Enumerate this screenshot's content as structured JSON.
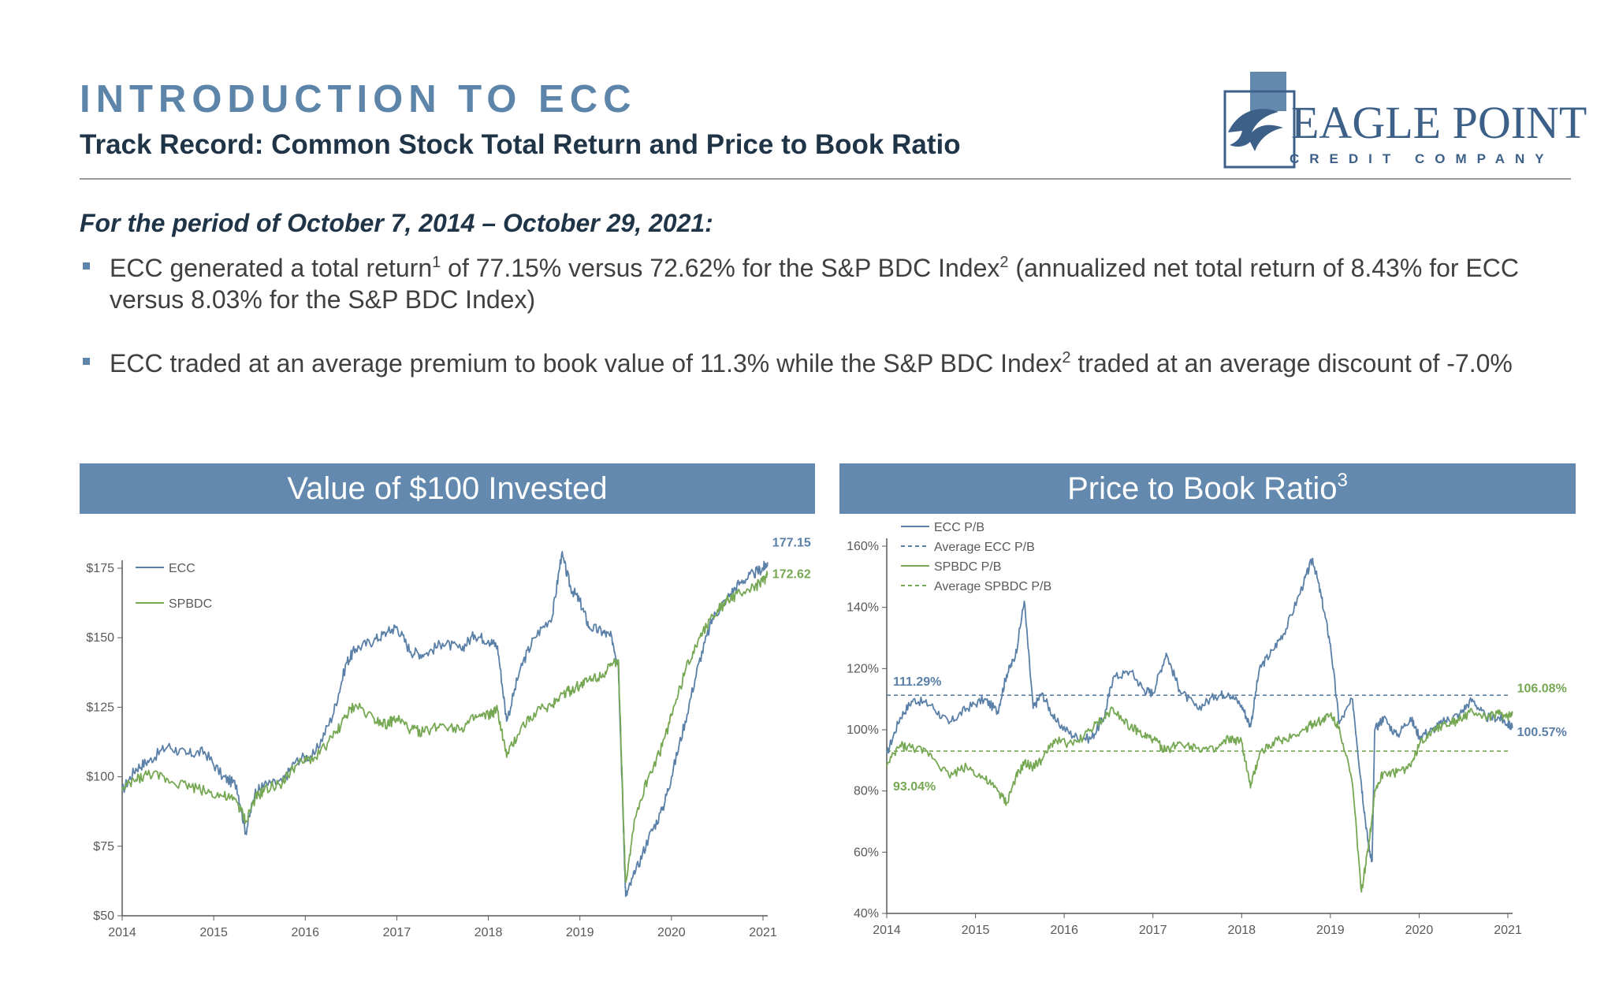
{
  "header": {
    "kicker": "INTRODUCTION TO ECC",
    "title": "Track Record: Common Stock Total Return and Price to Book Ratio"
  },
  "logo": {
    "name": "EAGLE POINT",
    "subtitle": "CREDIT COMPANY"
  },
  "colors": {
    "accent_blue": "#5d84a9",
    "bar_blue": "#6389ae",
    "ecc_line": "#5b80a8",
    "spbdc_line": "#76a854"
  },
  "summary": {
    "period": "For the period of October 7, 2014 – October 29, 2021:",
    "bullet1": {
      "p1": "ECC generated a total return",
      "sup1": "1",
      "p2": " of 77.15% versus 72.62% for the S&P BDC Index",
      "sup2": "2",
      "p3": " (annualized net total return of 8.43% for ECC versus 8.03% for the S&P BDC Index)"
    },
    "bullet2": {
      "p1": "ECC traded at an average premium to book value of 11.3% while the S&P BDC Index",
      "sup1": "2",
      "p2": "  traded at an average discount of -7.0%"
    }
  },
  "chart_data": [
    {
      "type": "line",
      "title": "Value of $100 Invested",
      "xlim": [
        2014,
        2021
      ],
      "ylim": [
        50,
        175
      ],
      "x_ticks": [
        "2014",
        "2015",
        "2016",
        "2017",
        "2018",
        "2019",
        "2020",
        "2021"
      ],
      "y_ticks": [
        "$50",
        "$75",
        "$100",
        "$125",
        "$150",
        "$175"
      ],
      "legend": "top-left",
      "grid": false,
      "series": [
        {
          "name": "ECC",
          "color": "#5b80a8",
          "end_label": "177.15",
          "x": [
            2014.0,
            2014.15,
            2014.3,
            2014.5,
            2014.7,
            2014.9,
            2015.1,
            2015.25,
            2015.35,
            2015.45,
            2015.55,
            2015.75,
            2015.9,
            2016.1,
            2016.3,
            2016.45,
            2016.55,
            2016.75,
            2016.9,
            2017.0,
            2017.15,
            2017.3,
            2017.5,
            2017.7,
            2017.85,
            2018.0,
            2018.1,
            2018.2,
            2018.35,
            2018.5,
            2018.7,
            2018.8,
            2018.9,
            2019.0,
            2019.1,
            2019.25,
            2019.35,
            2019.42,
            2019.47,
            2019.5,
            2019.6,
            2019.75,
            2019.9,
            2020.0,
            2020.15,
            2020.3,
            2020.45,
            2020.6,
            2020.75,
            2020.9,
            2021.0,
            2021.05
          ],
          "y": [
            95,
            103,
            106,
            111,
            108,
            109,
            100,
            97,
            80,
            94,
            97,
            98,
            106,
            108,
            122,
            141,
            146,
            149,
            152,
            154,
            145,
            144,
            148,
            146,
            151,
            149,
            147,
            120,
            139,
            150,
            158,
            180,
            168,
            163,
            154,
            152,
            150,
            140,
            88,
            57,
            65,
            78,
            88,
            100,
            120,
            141,
            157,
            164,
            170,
            173,
            175,
            177.15
          ]
        },
        {
          "name": "SPBDC",
          "color": "#76a854",
          "end_label": "172.62",
          "x": [
            2014.0,
            2014.15,
            2014.3,
            2014.5,
            2014.7,
            2014.9,
            2015.1,
            2015.25,
            2015.35,
            2015.45,
            2015.55,
            2015.75,
            2015.9,
            2016.1,
            2016.3,
            2016.45,
            2016.55,
            2016.75,
            2016.9,
            2017.0,
            2017.15,
            2017.3,
            2017.5,
            2017.7,
            2017.85,
            2018.0,
            2018.1,
            2018.2,
            2018.35,
            2018.5,
            2018.7,
            2018.8,
            2018.9,
            2019.0,
            2019.1,
            2019.25,
            2019.35,
            2019.42,
            2019.47,
            2019.5,
            2019.6,
            2019.75,
            2019.9,
            2020.0,
            2020.15,
            2020.3,
            2020.45,
            2020.6,
            2020.75,
            2020.9,
            2021.0,
            2021.05
          ],
          "y": [
            95,
            99,
            101,
            99,
            97,
            95,
            93,
            91,
            84,
            92,
            95,
            98,
            104,
            107,
            114,
            122,
            126,
            121,
            119,
            121,
            117,
            116,
            119,
            117,
            121,
            122,
            124,
            107,
            117,
            123,
            126,
            130,
            131,
            133,
            135,
            137,
            140,
            142,
            90,
            62,
            85,
            100,
            111,
            122,
            138,
            150,
            158,
            163,
            166,
            168,
            170,
            172.62
          ]
        }
      ]
    },
    {
      "type": "line",
      "title": "Price to Book Ratio",
      "title_sup": "3",
      "xlim": [
        2014,
        2021
      ],
      "ylim": [
        40,
        160
      ],
      "x_ticks": [
        "2014",
        "2015",
        "2016",
        "2017",
        "2018",
        "2019",
        "2020",
        "2021"
      ],
      "y_ticks": [
        "40%",
        "60%",
        "80%",
        "100%",
        "120%",
        "140%",
        "160%"
      ],
      "legend": "top-left",
      "grid": false,
      "reference_lines": [
        {
          "name": "Average ECC P/B",
          "value": 111.29,
          "label": "111.29%",
          "color": "#5b80a8"
        },
        {
          "name": "Average SPBDC P/B",
          "value": 93.04,
          "label": "93.04%",
          "color": "#76a854"
        }
      ],
      "series": [
        {
          "name": "ECC P/B",
          "color": "#5b80a8",
          "end_label": "100.57%",
          "x": [
            2014.0,
            2014.15,
            2014.3,
            2014.5,
            2014.7,
            2014.9,
            2015.1,
            2015.25,
            2015.35,
            2015.45,
            2015.55,
            2015.65,
            2015.75,
            2015.9,
            2016.1,
            2016.3,
            2016.45,
            2016.55,
            2016.75,
            2016.9,
            2017.0,
            2017.15,
            2017.3,
            2017.5,
            2017.7,
            2017.85,
            2018.0,
            2018.1,
            2018.2,
            2018.35,
            2018.5,
            2018.7,
            2018.8,
            2018.9,
            2019.0,
            2019.1,
            2019.25,
            2019.35,
            2019.42,
            2019.47,
            2019.5,
            2019.6,
            2019.75,
            2019.9,
            2020.0,
            2020.15,
            2020.3,
            2020.45,
            2020.6,
            2020.75,
            2020.9,
            2021.0,
            2021.05
          ],
          "y": [
            92,
            104,
            110,
            108,
            102,
            107,
            110,
            106,
            118,
            124,
            142,
            107,
            112,
            103,
            98,
            97,
            104,
            117,
            119,
            113,
            112,
            125,
            113,
            107,
            111,
            112,
            108,
            101,
            120,
            126,
            133,
            148,
            156,
            143,
            128,
            102,
            110,
            82,
            64,
            57,
            100,
            104,
            98,
            104,
            98,
            100,
            103,
            105,
            110,
            104,
            104,
            102,
            100.57
          ]
        },
        {
          "name": "SPBDC P/B",
          "color": "#76a854",
          "end_label": "106.08%",
          "x": [
            2014.0,
            2014.15,
            2014.3,
            2014.5,
            2014.7,
            2014.9,
            2015.1,
            2015.25,
            2015.35,
            2015.45,
            2015.55,
            2015.65,
            2015.75,
            2015.9,
            2016.1,
            2016.3,
            2016.45,
            2016.55,
            2016.75,
            2016.9,
            2017.0,
            2017.15,
            2017.3,
            2017.5,
            2017.7,
            2017.85,
            2018.0,
            2018.1,
            2018.2,
            2018.35,
            2018.5,
            2018.7,
            2018.8,
            2018.9,
            2019.0,
            2019.1,
            2019.25,
            2019.35,
            2019.42,
            2019.47,
            2019.5,
            2019.6,
            2019.75,
            2019.9,
            2020.0,
            2020.15,
            2020.3,
            2020.45,
            2020.6,
            2020.75,
            2020.9,
            2021.0,
            2021.05
          ],
          "y": [
            88,
            95,
            94,
            92,
            85,
            88,
            84,
            80,
            76,
            84,
            89,
            88,
            90,
            97,
            95,
            100,
            104,
            107,
            101,
            98,
            97,
            93,
            96,
            94,
            93,
            97,
            96,
            81,
            92,
            96,
            97,
            100,
            102,
            103,
            105,
            101,
            82,
            47,
            60,
            72,
            80,
            86,
            86,
            88,
            95,
            100,
            102,
            103,
            106,
            104,
            105,
            104,
            106.08
          ]
        }
      ]
    }
  ]
}
